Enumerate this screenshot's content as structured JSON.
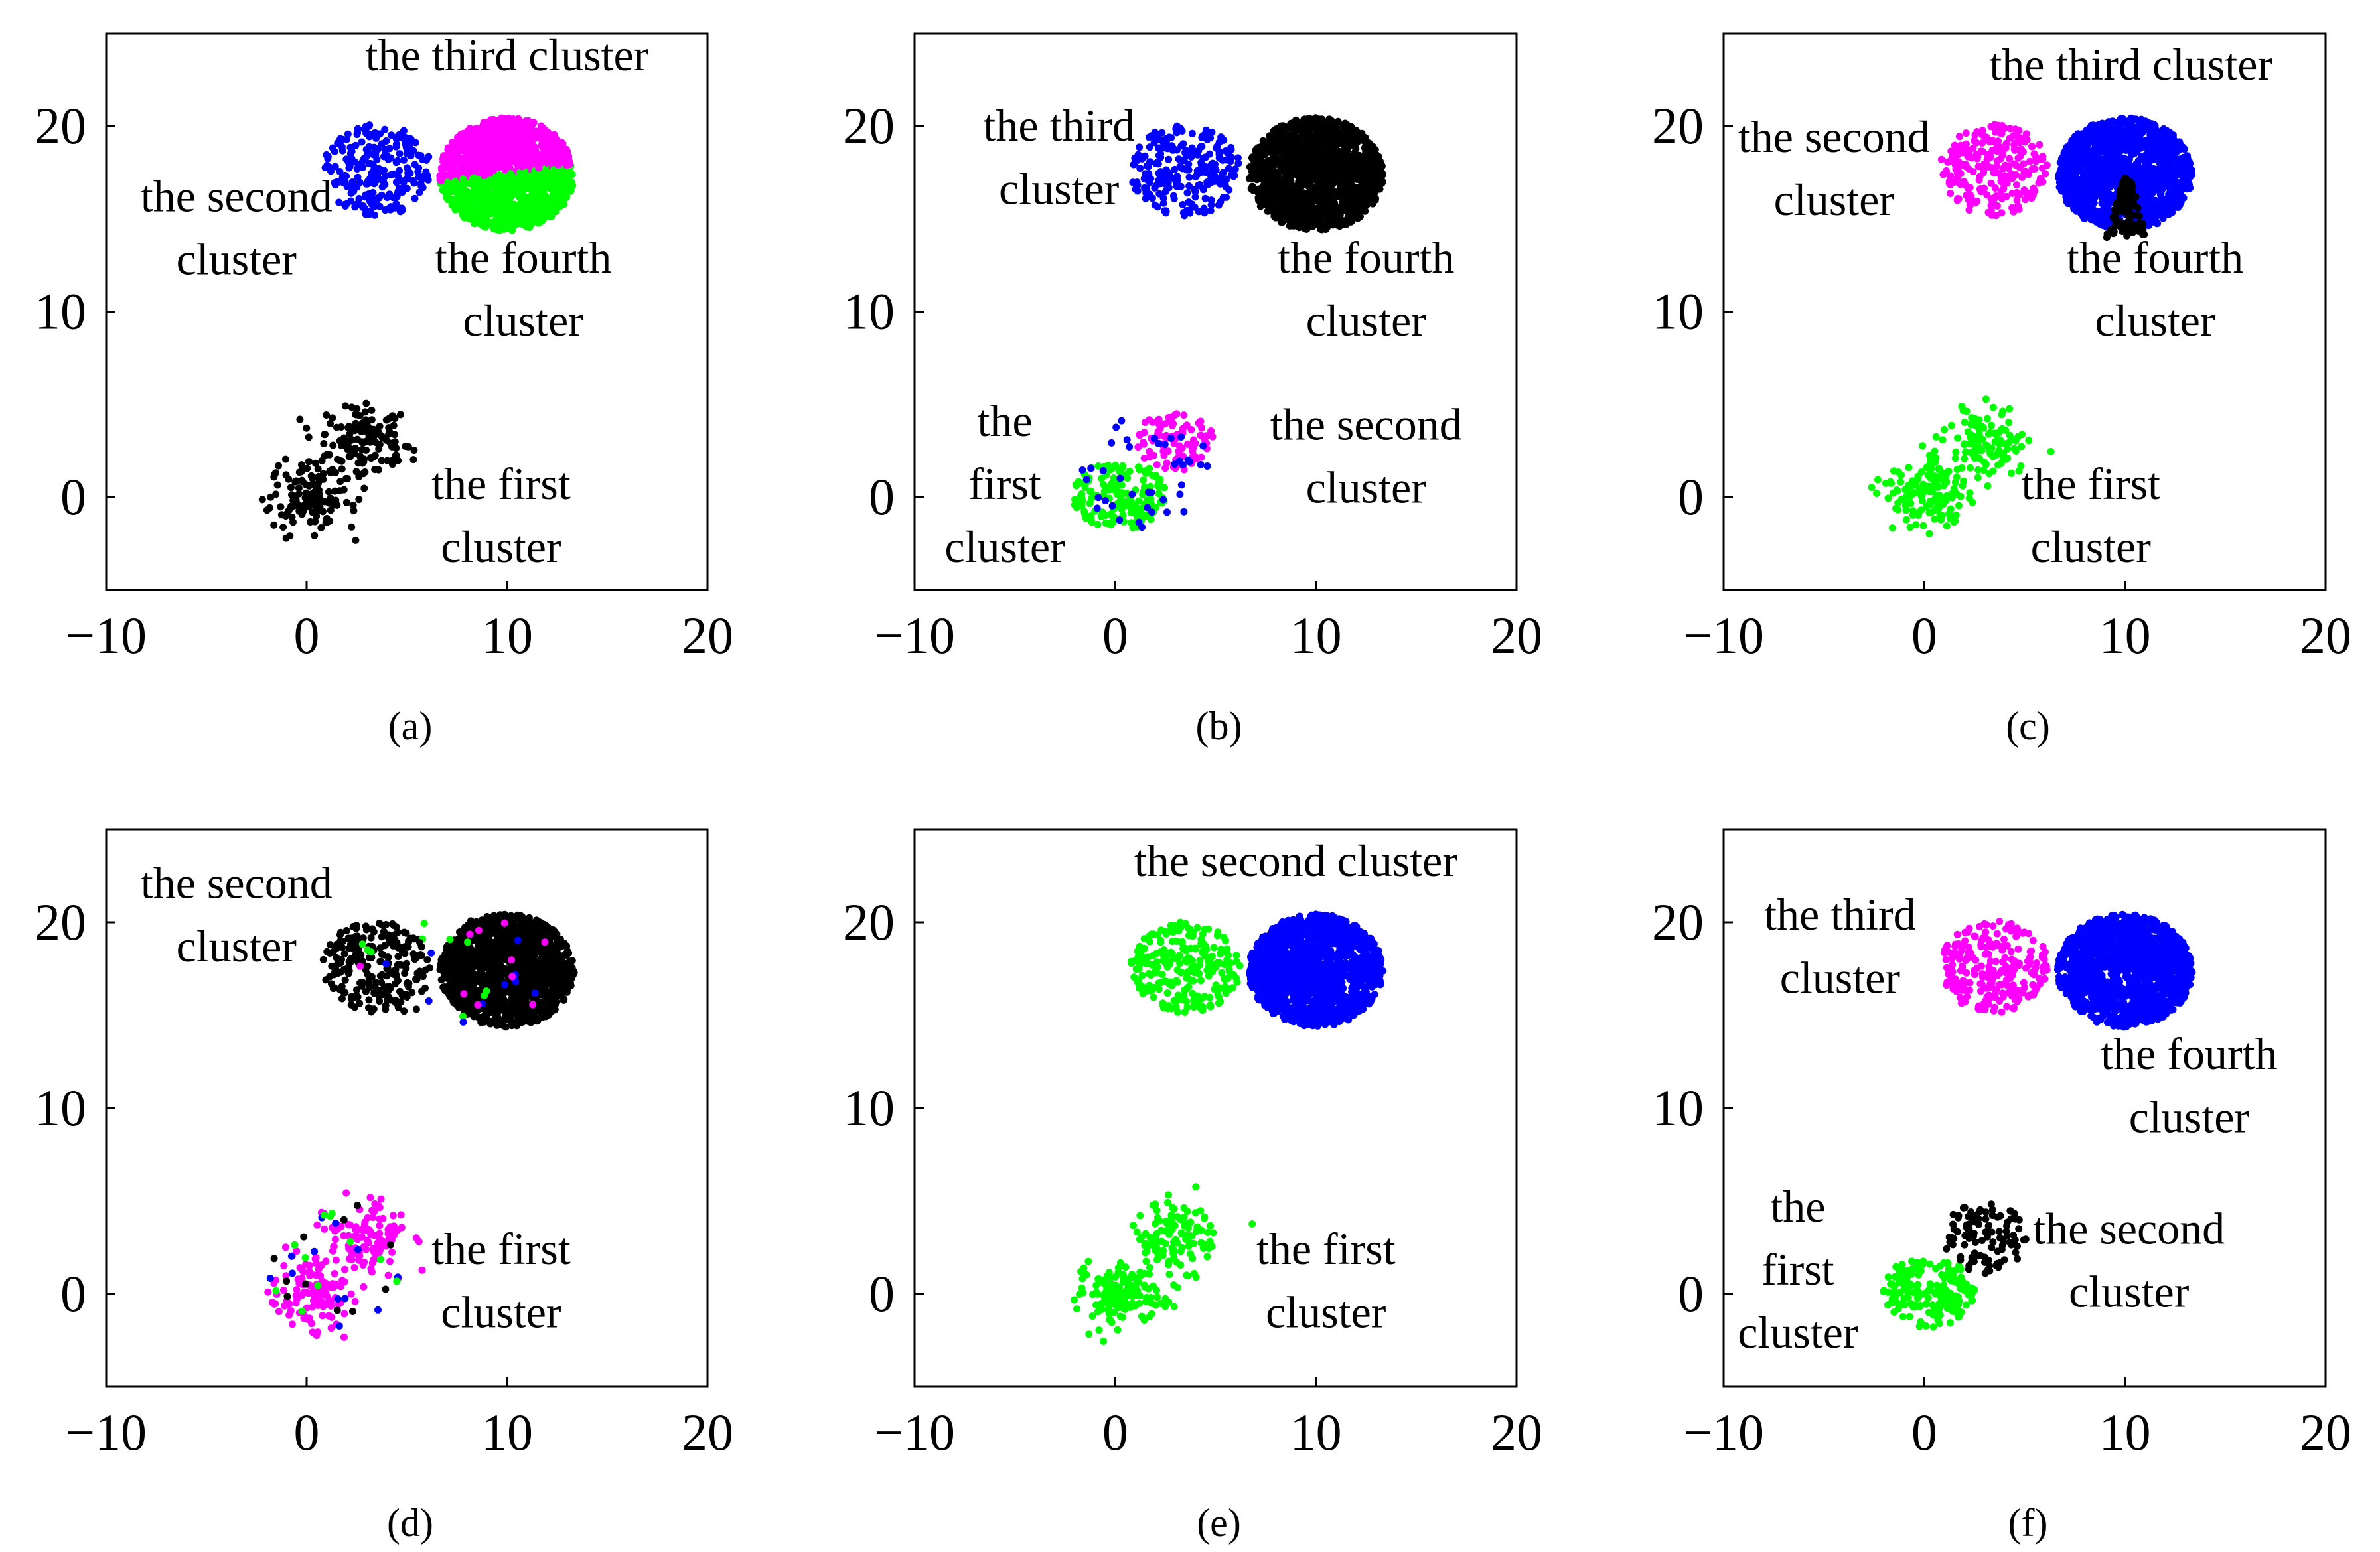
{
  "colors": {
    "black": "#000000",
    "blue": "#0000ff",
    "magenta": "#ff00ff",
    "green": "#00ff00"
  },
  "chart_data": [
    {
      "type": "scatter",
      "caption": "(a)",
      "xlim": [
        -10,
        20
      ],
      "ylim": [
        -5,
        25
      ],
      "xticks": [
        -10,
        0,
        10,
        20
      ],
      "yticks": [
        0,
        10,
        20
      ],
      "grid": false,
      "clusters": [
        {
          "shape": "elongated",
          "center": [
            1.5,
            1.5
          ],
          "spread": [
            1.6,
            1.6
          ],
          "n": 260,
          "color": "black"
        },
        {
          "shape": "round",
          "center": [
            3.5,
            17.6
          ],
          "spread": [
            1.3,
            1.3
          ],
          "n": 240,
          "color": "blue"
        },
        {
          "shape": "round",
          "center": [
            10,
            17.4
          ],
          "spread": [
            1.6,
            1.6
          ],
          "n": 1400,
          "color": "magenta",
          "split": {
            "below": "green",
            "y_left": 17.0,
            "y_right": 17.9
          }
        }
      ],
      "labels": [
        {
          "text": "the third cluster",
          "at": [
            10,
            23
          ]
        },
        {
          "text": "the second",
          "at": [
            -3.5,
            15.4
          ]
        },
        {
          "text": "cluster",
          "at": [
            -3.5,
            12.0
          ]
        },
        {
          "text": "the fourth",
          "at": [
            10.8,
            12.1
          ]
        },
        {
          "text": "cluster",
          "at": [
            10.8,
            8.7
          ]
        },
        {
          "text": "the first",
          "at": [
            9.7,
            -0.1
          ]
        },
        {
          "text": "cluster",
          "at": [
            9.7,
            -3.5
          ]
        }
      ]
    },
    {
      "type": "scatter",
      "caption": "(b)",
      "xlim": [
        -10,
        20
      ],
      "ylim": [
        -5,
        25
      ],
      "xticks": [
        -10,
        0,
        10,
        20
      ],
      "yticks": [
        0,
        10,
        20
      ],
      "grid": false,
      "clusters": [
        {
          "shape": "round",
          "center": [
            0.2,
            0.1
          ],
          "spread": [
            1.1,
            1.0
          ],
          "n": 170,
          "color": "green"
        },
        {
          "shape": "round",
          "center": [
            3.0,
            3.0
          ],
          "spread": [
            0.9,
            0.9
          ],
          "n": 90,
          "color": "magenta"
        },
        {
          "shape": "scatter-ring",
          "center": [
            1.5,
            1.5
          ],
          "spread": [
            2.0,
            2.0
          ],
          "n": 40,
          "color": "blue"
        },
        {
          "shape": "round",
          "center": [
            3.5,
            17.6
          ],
          "spread": [
            1.3,
            1.3
          ],
          "n": 240,
          "color": "blue"
        },
        {
          "shape": "round",
          "center": [
            10,
            17.4
          ],
          "spread": [
            1.6,
            1.6
          ],
          "n": 1400,
          "color": "black"
        }
      ],
      "labels": [
        {
          "text": "the third",
          "at": [
            -2.8,
            19.2
          ]
        },
        {
          "text": "cluster",
          "at": [
            -2.8,
            15.8
          ]
        },
        {
          "text": "the fourth",
          "at": [
            12.5,
            12.1
          ]
        },
        {
          "text": "cluster",
          "at": [
            12.5,
            8.7
          ]
        },
        {
          "text": "the",
          "at": [
            -5.5,
            3.3
          ]
        },
        {
          "text": "first",
          "at": [
            -5.5,
            -0.1
          ]
        },
        {
          "text": "cluster",
          "at": [
            -5.5,
            -3.5
          ]
        },
        {
          "text": "the second",
          "at": [
            12.5,
            3.1
          ]
        },
        {
          "text": "cluster",
          "at": [
            12.5,
            -0.3
          ]
        }
      ]
    },
    {
      "type": "scatter",
      "caption": "(c)",
      "xlim": [
        -10,
        20
      ],
      "ylim": [
        -5,
        25
      ],
      "xticks": [
        -10,
        0,
        10,
        20
      ],
      "yticks": [
        0,
        10,
        20
      ],
      "grid": false,
      "clusters": [
        {
          "shape": "elongated",
          "center": [
            1.5,
            1.5
          ],
          "spread": [
            1.6,
            1.6
          ],
          "n": 260,
          "color": "green"
        },
        {
          "shape": "round",
          "center": [
            3.5,
            17.6
          ],
          "spread": [
            1.3,
            1.3
          ],
          "n": 240,
          "color": "magenta"
        },
        {
          "shape": "round",
          "center": [
            10,
            17.4
          ],
          "spread": [
            1.6,
            1.6
          ],
          "n": 1400,
          "color": "blue"
        },
        {
          "shape": "wedge",
          "center": [
            10.1,
            15.6
          ],
          "spread": [
            0.6,
            1.2
          ],
          "n": 120,
          "color": "black"
        }
      ],
      "labels": [
        {
          "text": "the third cluster",
          "at": [
            10.3,
            22.5
          ]
        },
        {
          "text": "the second",
          "at": [
            -4.5,
            18.6
          ]
        },
        {
          "text": "cluster",
          "at": [
            -4.5,
            15.2
          ]
        },
        {
          "text": "the fourth",
          "at": [
            11.5,
            12.1
          ]
        },
        {
          "text": "cluster",
          "at": [
            11.5,
            8.7
          ]
        },
        {
          "text": "the first",
          "at": [
            8.3,
            -0.1
          ]
        },
        {
          "text": "cluster",
          "at": [
            8.3,
            -3.5
          ]
        }
      ]
    },
    {
      "type": "scatter",
      "caption": "(d)",
      "xlim": [
        -10,
        20
      ],
      "ylim": [
        -5,
        25
      ],
      "xticks": [
        -10,
        0,
        10,
        20
      ],
      "yticks": [
        0,
        10,
        20
      ],
      "grid": false,
      "clusters": [
        {
          "shape": "elongated",
          "center": [
            1.5,
            1.5
          ],
          "spread": [
            1.6,
            1.6
          ],
          "n": 220,
          "color": "magenta"
        },
        {
          "shape": "scatter-ring",
          "center": [
            1.5,
            1.5
          ],
          "spread": [
            2.2,
            2.2
          ],
          "n": 45,
          "color": "mixed-low"
        },
        {
          "shape": "round",
          "center": [
            3.5,
            17.6
          ],
          "spread": [
            1.3,
            1.3
          ],
          "n": 230,
          "color": "black"
        },
        {
          "shape": "round",
          "center": [
            10,
            17.4
          ],
          "spread": [
            1.6,
            1.6
          ],
          "n": 1400,
          "color": "black"
        },
        {
          "shape": "scatter-ring",
          "center": [
            7.5,
            17.4
          ],
          "spread": [
            3.5,
            1.9
          ],
          "n": 40,
          "color": "mixed-high"
        }
      ],
      "labels": [
        {
          "text": "the second",
          "at": [
            -3.5,
            21.3
          ]
        },
        {
          "text": "cluster",
          "at": [
            -3.5,
            17.9
          ]
        },
        {
          "text": "the first",
          "at": [
            9.7,
            1.6
          ]
        },
        {
          "text": "cluster",
          "at": [
            9.7,
            -1.8
          ]
        }
      ]
    },
    {
      "type": "scatter",
      "caption": "(e)",
      "xlim": [
        -10,
        20
      ],
      "ylim": [
        -5,
        25
      ],
      "xticks": [
        -10,
        0,
        10,
        20
      ],
      "yticks": [
        0,
        10,
        20
      ],
      "grid": false,
      "clusters": [
        {
          "shape": "elongated",
          "center": [
            1.5,
            1.5
          ],
          "spread": [
            1.6,
            1.6
          ],
          "n": 260,
          "color": "green"
        },
        {
          "shape": "round",
          "center": [
            3.5,
            17.6
          ],
          "spread": [
            1.3,
            1.3
          ],
          "n": 240,
          "color": "green"
        },
        {
          "shape": "round",
          "center": [
            10,
            17.4
          ],
          "spread": [
            1.6,
            1.6
          ],
          "n": 1400,
          "color": "blue"
        }
      ],
      "labels": [
        {
          "text": "the second cluster",
          "at": [
            9,
            22.5
          ]
        },
        {
          "text": "the first",
          "at": [
            10.5,
            1.6
          ]
        },
        {
          "text": "cluster",
          "at": [
            10.5,
            -1.8
          ]
        }
      ]
    },
    {
      "type": "scatter",
      "caption": "(f)",
      "xlim": [
        -10,
        20
      ],
      "ylim": [
        -5,
        25
      ],
      "xticks": [
        -10,
        0,
        10,
        20
      ],
      "yticks": [
        0,
        10,
        20
      ],
      "grid": false,
      "clusters": [
        {
          "shape": "round",
          "center": [
            0.2,
            0.1
          ],
          "spread": [
            1.1,
            1.0
          ],
          "n": 170,
          "color": "green"
        },
        {
          "shape": "round",
          "center": [
            3.0,
            3.0
          ],
          "spread": [
            1.0,
            1.0
          ],
          "n": 100,
          "color": "black"
        },
        {
          "shape": "round",
          "center": [
            3.5,
            17.6
          ],
          "spread": [
            1.3,
            1.3
          ],
          "n": 240,
          "color": "magenta"
        },
        {
          "shape": "round",
          "center": [
            10,
            17.4
          ],
          "spread": [
            1.6,
            1.6
          ],
          "n": 1400,
          "color": "blue"
        }
      ],
      "labels": [
        {
          "text": "the third",
          "at": [
            -4.2,
            19.6
          ]
        },
        {
          "text": "cluster",
          "at": [
            -4.2,
            16.2
          ]
        },
        {
          "text": "the fourth",
          "at": [
            13.2,
            12.1
          ]
        },
        {
          "text": "cluster",
          "at": [
            13.2,
            8.7
          ]
        },
        {
          "text": "the",
          "at": [
            -6.3,
            3.9
          ]
        },
        {
          "text": "first",
          "at": [
            -6.3,
            0.5
          ]
        },
        {
          "text": "cluster",
          "at": [
            -6.3,
            -2.9
          ]
        },
        {
          "text": "the second",
          "at": [
            10.2,
            2.7
          ]
        },
        {
          "text": "cluster",
          "at": [
            10.2,
            -0.7
          ]
        }
      ]
    }
  ]
}
